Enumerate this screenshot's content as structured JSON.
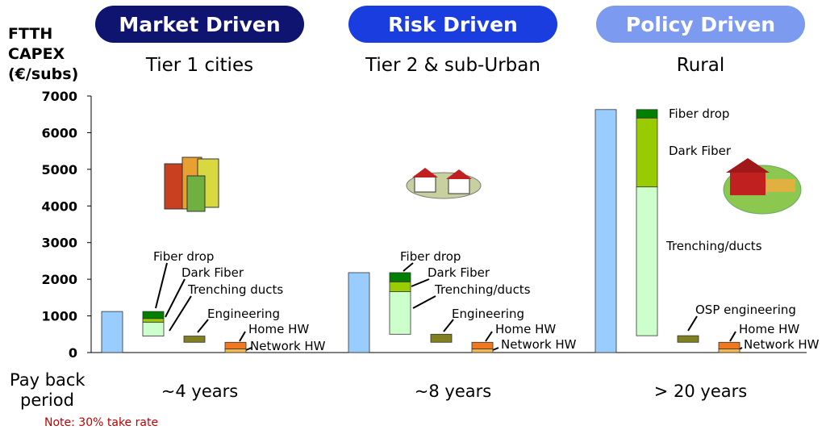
{
  "chart_data": {
    "type": "waterfall",
    "y_label_lines": [
      "FTTH",
      "CAPEX",
      "(€/subs)"
    ],
    "ylim": [
      0,
      7000
    ],
    "yticks": [
      0,
      1000,
      2000,
      3000,
      4000,
      5000,
      6000,
      7000
    ],
    "payback_label_lines": [
      "Pay back",
      "period"
    ],
    "note": "Note: 30% take rate",
    "total_color": "#99ccff",
    "groups": [
      {
        "header": "Market Driven",
        "header_color": "#0f1470",
        "subtitle": "Tier 1 cities",
        "payback": "~4 years",
        "total": 1120,
        "segments": [
          {
            "name": "Network HW",
            "value": 100,
            "color": "#f8b84a"
          },
          {
            "name": "Home HW",
            "value": 180,
            "color": "#f07820"
          },
          {
            "name": "Engineering",
            "value": 170,
            "color": "#808020"
          },
          {
            "name": "Trenching ducts",
            "value": 380,
            "color": "#ccffcc"
          },
          {
            "name": "Dark Fiber",
            "value": 100,
            "color": "#99cc00"
          },
          {
            "name": "Fiber drop",
            "value": 190,
            "color": "#008000"
          }
        ]
      },
      {
        "header": "Risk Driven",
        "header_color": "#1a3de0",
        "subtitle": "Tier 2 & sub-Urban",
        "payback": "~8 years",
        "total": 2180,
        "segments": [
          {
            "name": "Network HW",
            "value": 100,
            "color": "#f8b84a"
          },
          {
            "name": "Home HW",
            "value": 180,
            "color": "#f07820"
          },
          {
            "name": "Engineering",
            "value": 220,
            "color": "#808020"
          },
          {
            "name": "Trenching/ducts",
            "value": 1160,
            "color": "#ccffcc"
          },
          {
            "name": "Dark Fiber",
            "value": 270,
            "color": "#99cc00"
          },
          {
            "name": "Fiber drop",
            "value": 250,
            "color": "#008000"
          }
        ]
      },
      {
        "header": "Policy Driven",
        "header_color": "#7b9af0",
        "subtitle": "Rural",
        "payback": "> 20 years",
        "total": 6630,
        "segments": [
          {
            "name": "Network HW",
            "value": 100,
            "color": "#f8b84a"
          },
          {
            "name": "Home HW",
            "value": 180,
            "color": "#f07820"
          },
          {
            "name": "OSP engineering",
            "value": 180,
            "color": "#808020"
          },
          {
            "name": "Trenching/ducts",
            "value": 4060,
            "color": "#ccffcc"
          },
          {
            "name": "Dark Fiber",
            "value": 1880,
            "color": "#99cc00"
          },
          {
            "name": "Fiber drop",
            "value": 230,
            "color": "#008000"
          }
        ]
      }
    ]
  }
}
